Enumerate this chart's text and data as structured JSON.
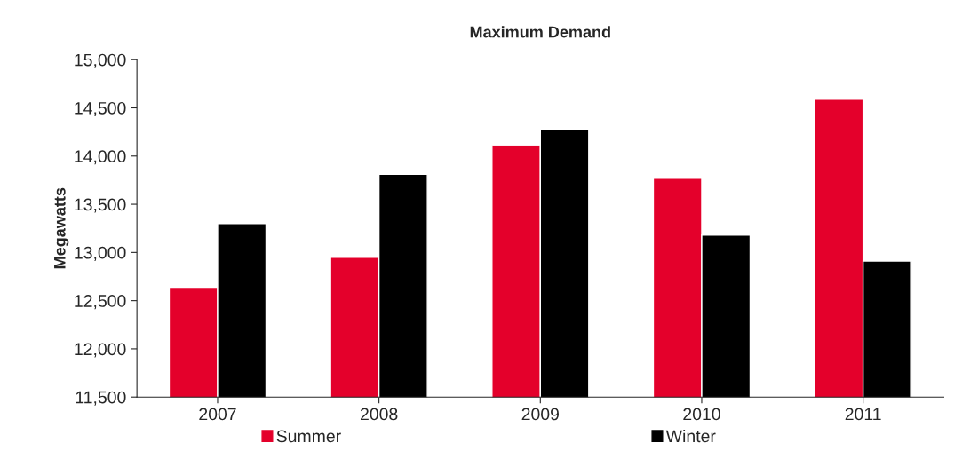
{
  "chart_data": {
    "type": "bar",
    "title": "Maximum Demand",
    "ylabel": "Megawatts",
    "categories": [
      "2007",
      "2008",
      "2009",
      "2010",
      "2011"
    ],
    "series": [
      {
        "name": "Summer",
        "color": "#e4002b",
        "values": [
          12640,
          12950,
          14110,
          13770,
          14590
        ]
      },
      {
        "name": "Winter",
        "color": "#000000",
        "values": [
          13300,
          13810,
          14280,
          13180,
          12910
        ]
      }
    ],
    "ylim": [
      11500,
      15000
    ],
    "yticks": [
      {
        "value": 11500,
        "label": "11,500"
      },
      {
        "value": 12000,
        "label": "12,000"
      },
      {
        "value": 12500,
        "label": "12,500"
      },
      {
        "value": 13000,
        "label": "13,000"
      },
      {
        "value": 13500,
        "label": "13,500"
      },
      {
        "value": 14000,
        "label": "14,000"
      },
      {
        "value": 14500,
        "label": "14,500"
      },
      {
        "value": 15000,
        "label": "15,000"
      }
    ],
    "grid": false,
    "legend": "bottom"
  }
}
